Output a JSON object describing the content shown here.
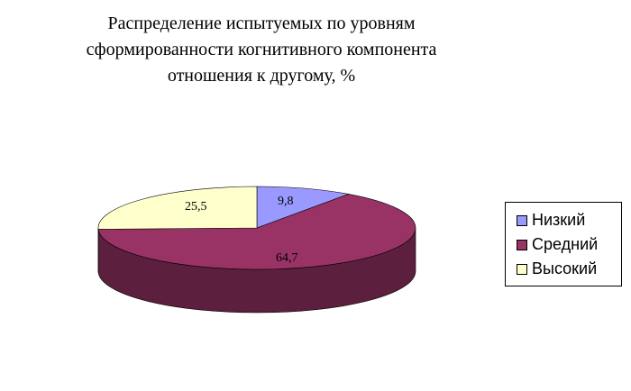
{
  "chart_data": {
    "type": "pie",
    "title_lines": [
      "Распределение испытуемых по уровням",
      "сформированности когнитивного компонента",
      "отношения к другому, %"
    ],
    "categories": [
      "Низкий",
      "Средний",
      "Высокий"
    ],
    "values": [
      9.8,
      64.7,
      25.5
    ],
    "data_labels": [
      "9,8",
      "64,7",
      "25,5"
    ],
    "colors": [
      "#9999FF",
      "#993366",
      "#FFFFCC"
    ],
    "side_colors": [
      "#5C5C99",
      "#5C1F3D",
      "#99997A"
    ],
    "legend_position": "right",
    "style": "3d"
  }
}
